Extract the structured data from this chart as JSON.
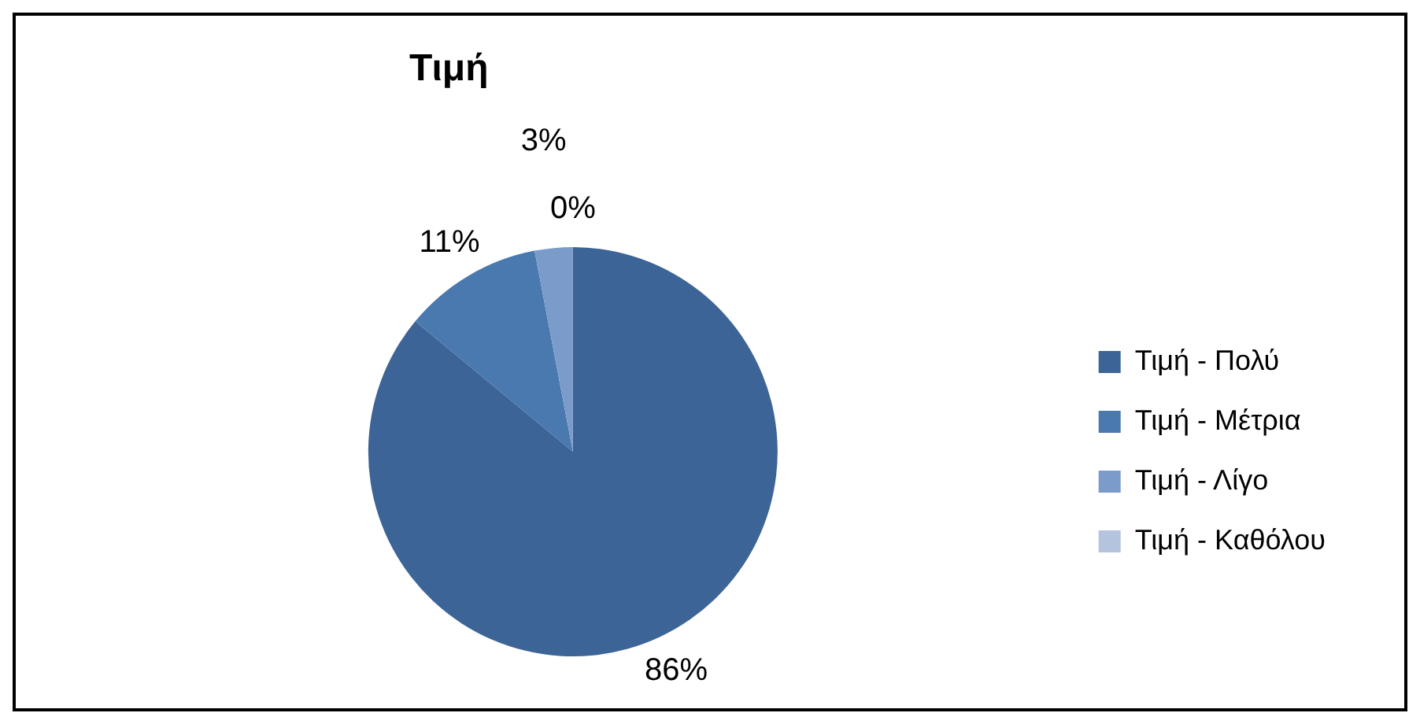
{
  "chart_data": {
    "type": "pie",
    "title": "Τιμή",
    "categories": [
      "Τιμή - Πολύ",
      "Τιμή - Μέτρια",
      "Τιμή - Λίγο",
      "Τιμή - Καθόλου"
    ],
    "values": [
      86,
      11,
      3,
      0
    ],
    "colors": [
      "#3d6496",
      "#4a79b0",
      "#7b9cca",
      "#b4c4de"
    ],
    "value_labels": [
      "86%",
      "11%",
      "3%",
      "0%"
    ],
    "legend": "right"
  }
}
